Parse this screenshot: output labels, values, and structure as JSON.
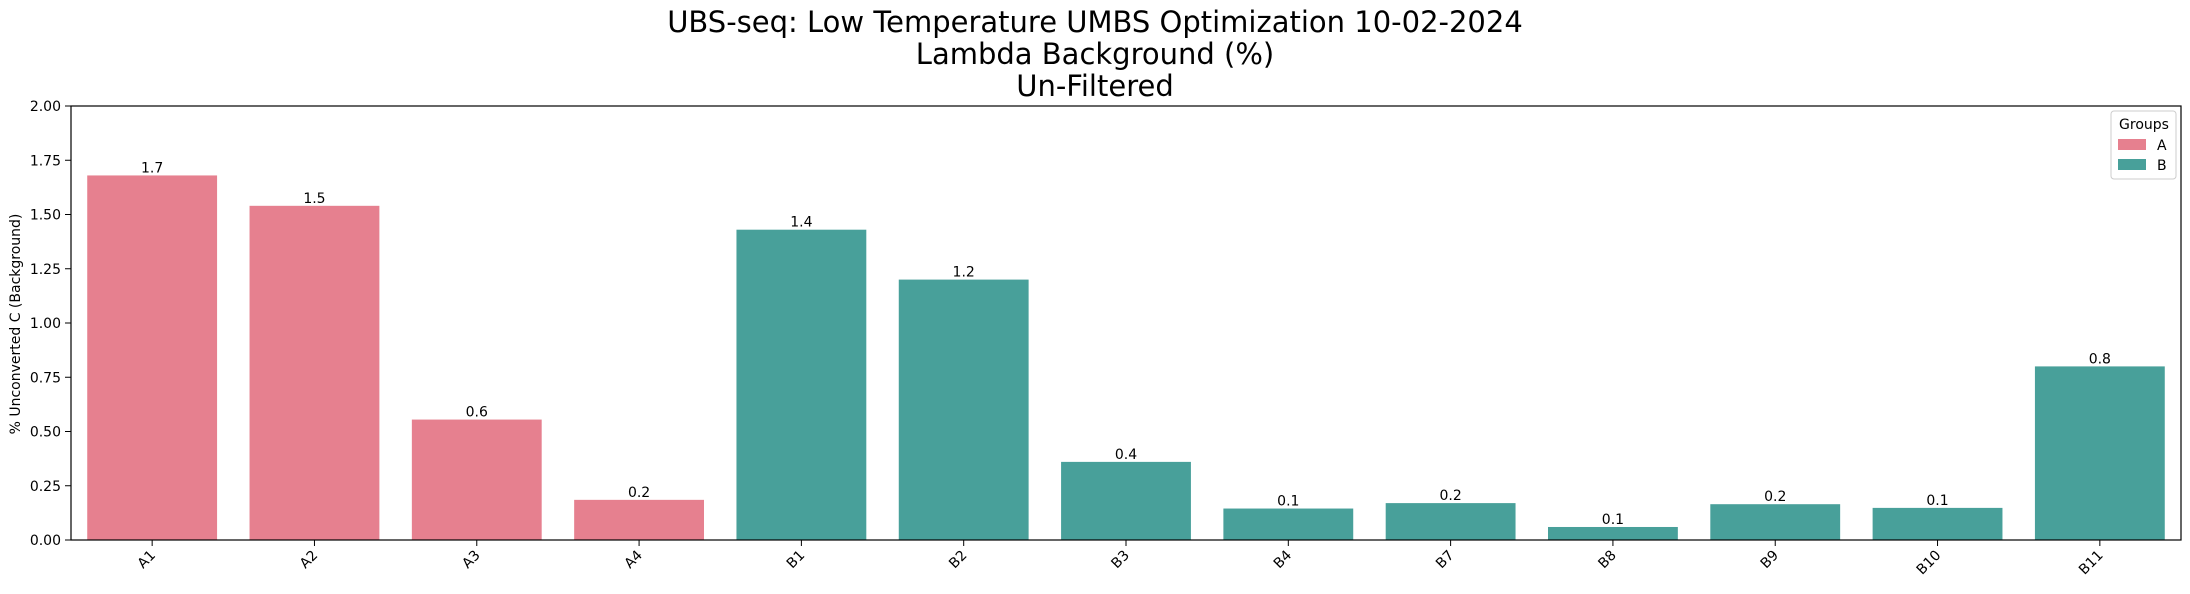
{
  "chart_data": {
    "type": "bar",
    "title_lines": [
      "UBS-seq: Low Temperature UMBS Optimization 10-02-2024",
      "Lambda Background (%)",
      "Un-Filtered"
    ],
    "xlabel": "",
    "ylabel": "% Unconverted C (Background)",
    "ylim": [
      0,
      2.0
    ],
    "yticks": [
      "0.00",
      "0.25",
      "0.50",
      "0.75",
      "1.00",
      "1.25",
      "1.50",
      "1.75",
      "2.00"
    ],
    "ytick_values": [
      0,
      0.25,
      0.5,
      0.75,
      1.0,
      1.25,
      1.5,
      1.75,
      2.0
    ],
    "categories": [
      "A1",
      "A2",
      "A3",
      "A4",
      "B1",
      "B2",
      "B3",
      "B4",
      "B7",
      "B8",
      "B9",
      "B10",
      "B11"
    ],
    "values": [
      1.68,
      1.54,
      0.555,
      0.185,
      1.43,
      1.2,
      0.36,
      0.145,
      0.17,
      0.06,
      0.165,
      0.148,
      0.8
    ],
    "data_labels": [
      "1.7",
      "1.5",
      "0.6",
      "0.2",
      "1.4",
      "1.2",
      "0.4",
      "0.1",
      "0.2",
      "0.1",
      "0.2",
      "0.1",
      "0.8"
    ],
    "groups": [
      "A",
      "A",
      "A",
      "A",
      "B",
      "B",
      "B",
      "B",
      "B",
      "B",
      "B",
      "B",
      "B"
    ],
    "legend": {
      "title": "Groups",
      "placement": "top-right",
      "entries": [
        {
          "name": "A",
          "color": "#e6808f"
        },
        {
          "name": "B",
          "color": "#48a09a"
        }
      ]
    },
    "grid": false
  }
}
